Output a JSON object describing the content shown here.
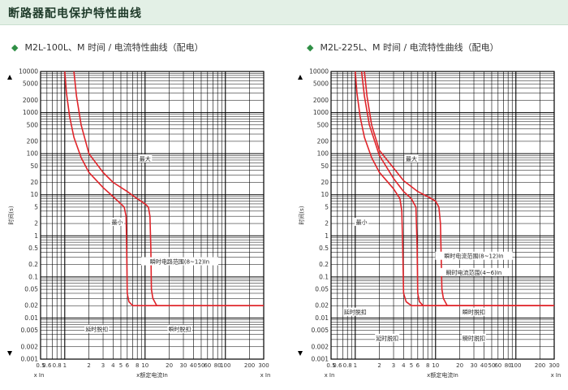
{
  "page": {
    "banner_title": "断路器配电保护特性曲线",
    "colors": {
      "banner_bg": "#e3f0e6",
      "bullet": "#2f8f45",
      "curve": "#e0242a",
      "grid": "#000000"
    }
  },
  "chart_data": [
    {
      "type": "line",
      "title": "M2L-100L、M 时间 / 电流特性曲线（配电）",
      "xlabel": "x额定电流In",
      "ylabel": "时间(s)",
      "x_scale": "log",
      "y_scale": "log",
      "xlim": [
        0.5,
        300
      ],
      "ylim": [
        0.001,
        10000
      ],
      "x_ticks": [
        "0.5",
        "0.6",
        "0.8",
        "1",
        "2",
        "3",
        "4",
        "5",
        "6",
        "8",
        "10",
        "20",
        "30",
        "40",
        "50",
        "60",
        "80",
        "100",
        "200",
        "300"
      ],
      "y_ticks": [
        "0.001",
        "0.002",
        "0.005",
        "0.01",
        "0.02",
        "0.05",
        "0.1",
        "0.2",
        "0.5",
        "1",
        "2",
        "5",
        "10",
        "20",
        "50",
        "100",
        "200",
        "500",
        "1000",
        "2000",
        "5000",
        "10000"
      ],
      "axis_label_left": "x In",
      "axis_label_right": "x In",
      "series": [
        {
          "name": "最小",
          "x": [
            1.0,
            1.05,
            1.15,
            1.3,
            1.6,
            2.0,
            3.0,
            4.0,
            5.0,
            5.5,
            5.8,
            5.9,
            6.0,
            6.3,
            7.0,
            10,
            100,
            300
          ],
          "y": [
            10000,
            3000,
            800,
            250,
            80,
            35,
            15,
            9,
            6,
            5,
            3,
            0.5,
            0.04,
            0.025,
            0.02,
            0.02,
            0.02,
            0.02
          ]
        },
        {
          "name": "最大",
          "x": [
            1.3,
            1.4,
            1.6,
            2.0,
            3.0,
            4.0,
            6.0,
            8.0,
            10.0,
            11.0,
            11.5,
            11.8,
            12.0,
            12.5,
            14.0,
            20,
            100,
            300
          ],
          "y": [
            10000,
            2500,
            500,
            100,
            35,
            20,
            12,
            8,
            6,
            5,
            3,
            0.5,
            0.05,
            0.03,
            0.02,
            0.02,
            0.02,
            0.02
          ]
        }
      ],
      "annotations": [
        {
          "text": "最大",
          "x": 10,
          "y": 70
        },
        {
          "text": "最小",
          "x": 4.5,
          "y": 2.0
        },
        {
          "text": "瞬时电路范围(8~12)In",
          "x": 27,
          "y": 0.22
        },
        {
          "text": "延时脱扣",
          "x": 2.5,
          "y": 0.005
        },
        {
          "text": "瞬时脱扣",
          "x": 27,
          "y": 0.005
        }
      ]
    },
    {
      "type": "line",
      "title": "M2L-225L、M 时间 / 电流特性曲线（配电）",
      "xlabel": "x额定电流In",
      "ylabel": "时间(s)",
      "x_scale": "log",
      "y_scale": "log",
      "xlim": [
        0.5,
        300
      ],
      "ylim": [
        0.001,
        10000
      ],
      "x_ticks": [
        "0.5",
        "0.6",
        "0.8",
        "1",
        "2",
        "3",
        "4",
        "5",
        "6",
        "8",
        "10",
        "20",
        "30",
        "40",
        "50",
        "60",
        "80",
        "100",
        "200",
        "300"
      ],
      "y_ticks": [
        "0.001",
        "0.002",
        "0.005",
        "0.01",
        "0.02",
        "0.05",
        "0.1",
        "0.2",
        "0.5",
        "1",
        "2",
        "5",
        "10",
        "20",
        "50",
        "100",
        "200",
        "500",
        "1000",
        "2000",
        "5000",
        "10000"
      ],
      "axis_label_left": "x In",
      "axis_label_right": "x In",
      "series": [
        {
          "name": "最小",
          "x": [
            1.0,
            1.05,
            1.15,
            1.3,
            1.6,
            2.0,
            3.0,
            3.6,
            3.8,
            3.9,
            4.0,
            4.3,
            5.0,
            10,
            100,
            300
          ],
          "y": [
            10000,
            3000,
            800,
            250,
            80,
            35,
            14,
            8,
            4,
            0.5,
            0.04,
            0.025,
            0.02,
            0.02,
            0.02,
            0.02
          ]
        },
        {
          "name": "",
          "x": [
            1.2,
            1.3,
            1.5,
            2.0,
            3.0,
            4.0,
            5.0,
            5.7,
            5.9,
            6.0,
            6.3,
            7.0,
            10,
            100,
            300
          ],
          "y": [
            10000,
            2500,
            500,
            90,
            25,
            12,
            8,
            5,
            0.5,
            0.04,
            0.025,
            0.02,
            0.02,
            0.02,
            0.02
          ]
        },
        {
          "name": "最大",
          "x": [
            1.3,
            1.4,
            1.6,
            2.0,
            3.0,
            4.0,
            6.0,
            8.0,
            10.0,
            11.0,
            11.5,
            12.0,
            12.5,
            14.0,
            20,
            100,
            300
          ],
          "y": [
            10000,
            2500,
            500,
            120,
            45,
            22,
            12,
            9,
            7,
            5,
            2,
            0.05,
            0.03,
            0.02,
            0.02,
            0.02,
            0.02
          ]
        }
      ],
      "annotations": [
        {
          "text": "最大",
          "x": 5,
          "y": 70
        },
        {
          "text": "最小",
          "x": 1.2,
          "y": 2.0
        },
        {
          "text": "瞬时电流范围(8~12)In",
          "x": 30,
          "y": 0.3
        },
        {
          "text": "瞬时电流范围(4~6)In",
          "x": 30,
          "y": 0.12
        },
        {
          "text": "延时脱扣",
          "x": 1.0,
          "y": 0.013
        },
        {
          "text": "瞬时脱扣",
          "x": 30,
          "y": 0.013
        },
        {
          "text": "延时脱扣",
          "x": 2.5,
          "y": 0.003
        },
        {
          "text": "瞬时脱扣",
          "x": 30,
          "y": 0.003
        }
      ]
    }
  ]
}
